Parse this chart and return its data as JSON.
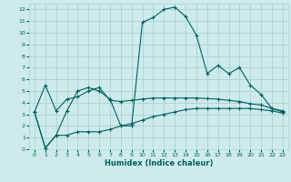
{
  "xlabel": "Humidex (Indice chaleur)",
  "background_color": "#ceeaea",
  "grid_color": "#a8d4d4",
  "line_color": "#006060",
  "xlim": [
    -0.5,
    23.5
  ],
  "ylim": [
    0,
    12.5
  ],
  "xticks": [
    0,
    1,
    2,
    3,
    4,
    5,
    6,
    7,
    8,
    9,
    10,
    11,
    12,
    13,
    14,
    15,
    16,
    17,
    18,
    19,
    20,
    21,
    22,
    23
  ],
  "yticks": [
    0,
    1,
    2,
    3,
    4,
    5,
    6,
    7,
    8,
    9,
    10,
    11,
    12
  ],
  "line_main_x": [
    0,
    1,
    2,
    3,
    4,
    5,
    6,
    7,
    8,
    9,
    10,
    11,
    12,
    13,
    14,
    15,
    16,
    17,
    18,
    19,
    20,
    21,
    22,
    23
  ],
  "line_main_y": [
    3.2,
    0.1,
    1.2,
    3.3,
    5.0,
    5.3,
    5.0,
    4.3,
    2.0,
    2.0,
    10.9,
    11.3,
    12.0,
    12.2,
    11.4,
    9.8,
    6.5,
    7.2,
    6.5,
    7.0,
    5.5,
    4.7,
    3.5,
    3.2
  ],
  "line_upper_x": [
    0,
    1,
    2,
    3,
    4,
    5,
    6,
    7,
    8,
    9,
    10,
    11,
    12,
    13,
    14,
    15,
    16,
    17,
    18,
    19,
    20,
    21,
    22,
    23
  ],
  "line_upper_y": [
    3.2,
    5.5,
    3.3,
    4.3,
    4.5,
    5.0,
    5.3,
    4.2,
    4.1,
    4.2,
    4.3,
    4.4,
    4.4,
    4.4,
    4.4,
    4.4,
    4.35,
    4.3,
    4.2,
    4.1,
    3.9,
    3.8,
    3.5,
    3.3
  ],
  "line_lower_x": [
    0,
    1,
    2,
    3,
    4,
    5,
    6,
    7,
    8,
    9,
    10,
    11,
    12,
    13,
    14,
    15,
    16,
    17,
    18,
    19,
    20,
    21,
    22,
    23
  ],
  "line_lower_y": [
    3.2,
    0.1,
    1.2,
    1.2,
    1.5,
    1.5,
    1.5,
    1.7,
    2.0,
    2.2,
    2.5,
    2.8,
    3.0,
    3.2,
    3.4,
    3.5,
    3.5,
    3.5,
    3.5,
    3.5,
    3.5,
    3.4,
    3.3,
    3.1
  ]
}
